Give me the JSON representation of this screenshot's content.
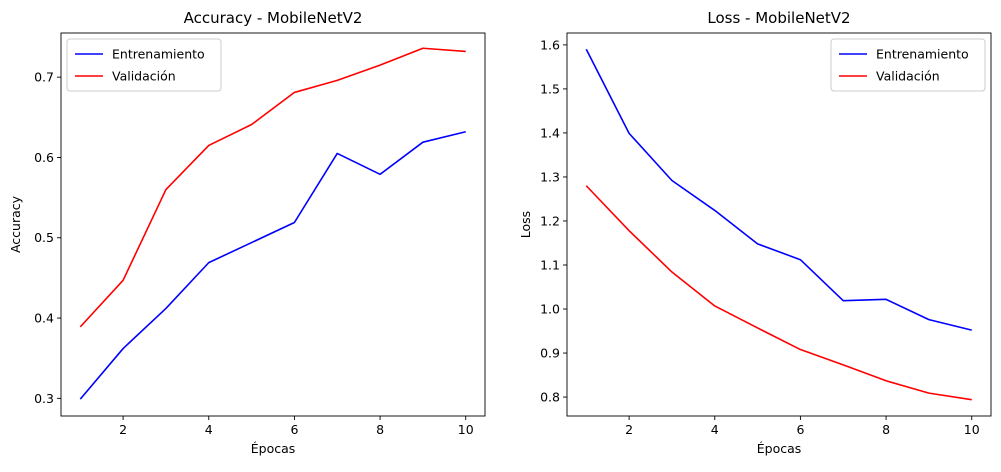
{
  "chart_data": [
    {
      "type": "line",
      "title": "Accuracy - MobileNetV2",
      "xlabel": "Épocas",
      "ylabel": "Accuracy",
      "x": [
        1,
        2,
        3,
        4,
        5,
        6,
        7,
        8,
        9,
        10
      ],
      "xlim": [
        0.55,
        10.45
      ],
      "ylim": [
        0.278,
        0.755
      ],
      "xticks": [
        2,
        4,
        6,
        8,
        10
      ],
      "yticks": [
        0.3,
        0.4,
        0.5,
        0.6,
        0.7
      ],
      "ytick_labels": [
        "0.3",
        "0.4",
        "0.5",
        "0.6",
        "0.7"
      ],
      "grid": false,
      "legend_position": "upper left",
      "series": [
        {
          "name": "Entrenamiento",
          "color": "#0000ff",
          "values": [
            0.299,
            0.362,
            0.412,
            0.469,
            0.494,
            0.519,
            0.605,
            0.579,
            0.619,
            0.632
          ]
        },
        {
          "name": "Validación",
          "color": "#ff0000",
          "values": [
            0.389,
            0.447,
            0.56,
            0.615,
            0.641,
            0.681,
            0.696,
            0.715,
            0.736,
            0.732
          ]
        }
      ]
    },
    {
      "type": "line",
      "title": "Loss - MobileNetV2",
      "xlabel": "Épocas",
      "ylabel": "Loss",
      "x": [
        1,
        2,
        3,
        4,
        5,
        6,
        7,
        8,
        9,
        10
      ],
      "xlim": [
        0.55,
        10.45
      ],
      "ylim": [
        0.757,
        1.627
      ],
      "xticks": [
        2,
        4,
        6,
        8,
        10
      ],
      "yticks": [
        0.8,
        0.9,
        1.0,
        1.1,
        1.2,
        1.3,
        1.4,
        1.5,
        1.6
      ],
      "ytick_labels": [
        "0.8",
        "0.9",
        "1.0",
        "1.1",
        "1.2",
        "1.3",
        "1.4",
        "1.5",
        "1.6"
      ],
      "grid": false,
      "legend_position": "upper right",
      "series": [
        {
          "name": "Entrenamiento",
          "color": "#0000ff",
          "values": [
            1.59,
            1.399,
            1.292,
            1.224,
            1.148,
            1.112,
            1.019,
            1.022,
            0.976,
            0.952
          ]
        },
        {
          "name": "Validación",
          "color": "#ff0000",
          "values": [
            1.28,
            1.178,
            1.084,
            1.007,
            0.957,
            0.908,
            0.873,
            0.837,
            0.809,
            0.794
          ]
        }
      ]
    }
  ]
}
